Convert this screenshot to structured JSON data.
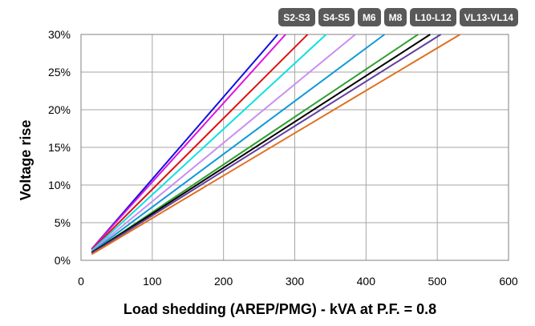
{
  "tabs": [
    {
      "label": "S2-S3"
    },
    {
      "label": "S4-S5"
    },
    {
      "label": "M6"
    },
    {
      "label": "M8"
    },
    {
      "label": "L10-L12"
    },
    {
      "label": "VL13-VL14"
    }
  ],
  "chart_data": {
    "type": "line",
    "title": "",
    "xlabel": "Load shedding (AREP/PMG) - kVA at P.F. = 0.8",
    "ylabel": "Voltage rise",
    "xlim": [
      0,
      600
    ],
    "ylim": [
      0,
      30
    ],
    "x_ticks": [
      0,
      100,
      200,
      300,
      400,
      500,
      600
    ],
    "x_tick_labels": [
      "0",
      "100",
      "200",
      "300",
      "400",
      "500",
      "600"
    ],
    "y_ticks": [
      0,
      5,
      10,
      15,
      20,
      25,
      30
    ],
    "y_tick_labels": [
      "0%",
      "5%",
      "10%",
      "15%",
      "20%",
      "25%",
      "30%"
    ],
    "grid": true,
    "series": [
      {
        "color": "#1010e0",
        "x": [
          15,
          276
        ],
        "y": [
          1.5,
          30
        ]
      },
      {
        "color": "#e010e0",
        "x": [
          15,
          287
        ],
        "y": [
          1.5,
          30
        ]
      },
      {
        "color": "#e01010",
        "x": [
          15,
          318
        ],
        "y": [
          1.4,
          30
        ]
      },
      {
        "color": "#10e0e0",
        "x": [
          15,
          344
        ],
        "y": [
          1.3,
          30
        ]
      },
      {
        "color": "#c890f0",
        "x": [
          15,
          385
        ],
        "y": [
          1.2,
          30
        ]
      },
      {
        "color": "#1098d8",
        "x": [
          15,
          426
        ],
        "y": [
          1.1,
          30
        ]
      },
      {
        "color": "#30a030",
        "x": [
          15,
          473
        ],
        "y": [
          1.0,
          30
        ]
      },
      {
        "color": "#000000",
        "x": [
          15,
          490
        ],
        "y": [
          1.0,
          30
        ]
      },
      {
        "color": "#6040a0",
        "x": [
          15,
          505
        ],
        "y": [
          0.9,
          30
        ]
      },
      {
        "color": "#e07020",
        "x": [
          15,
          532
        ],
        "y": [
          0.8,
          30
        ]
      }
    ]
  }
}
